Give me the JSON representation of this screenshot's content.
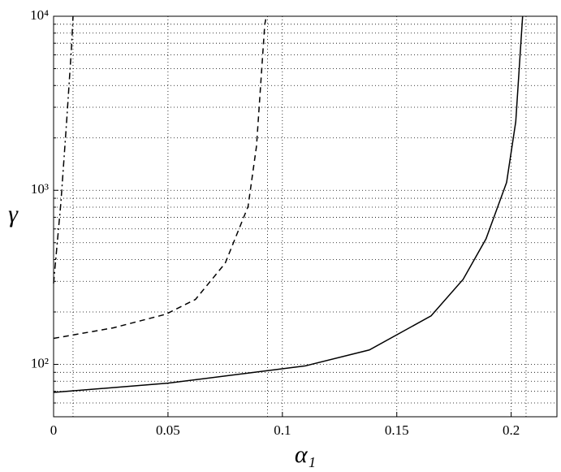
{
  "chart_data": {
    "type": "line",
    "x_label": "α₁",
    "y_label": "γ",
    "xlim": [
      0,
      0.22
    ],
    "xticks": [
      0,
      0.05,
      0.1,
      0.15,
      0.2
    ],
    "ylim": [
      50,
      10000
    ],
    "log_y": true,
    "grid": true,
    "yticks": [
      {
        "value": 100,
        "label": "10²"
      },
      {
        "value": 1000,
        "label": "10³"
      },
      {
        "value": 10000,
        "label": "10⁴"
      }
    ],
    "yminor": [
      60,
      70,
      80,
      90,
      200,
      300,
      400,
      500,
      600,
      700,
      800,
      900,
      2000,
      3000,
      4000,
      5000,
      6000,
      7000,
      8000,
      9000
    ],
    "asymptotes": [
      0.0085,
      0.0935,
      0.2065
    ],
    "series": [
      {
        "color": "#000000",
        "style": "solid",
        "x": [
          0,
          0.05,
          0.11,
          0.138,
          0.165,
          0.179,
          0.189,
          0.198,
          0.202,
          0.205
        ],
        "values": [
          69,
          78,
          98,
          121,
          190,
          308,
          526,
          1110,
          2480,
          10000
        ]
      },
      {
        "color": "#000000",
        "style": "dashed",
        "x": [
          0,
          0.026,
          0.049,
          0.062,
          0.075,
          0.085,
          0.0887,
          0.0923,
          0.093
        ],
        "values": [
          141,
          162,
          194,
          236,
          381,
          807,
          1800,
          8980,
          10000
        ]
      },
      {
        "color": "#000000",
        "style": "dashdot",
        "x": [
          0,
          0.0032,
          0.0057,
          0.0078,
          0.0085
        ],
        "values": [
          292,
          851,
          2480,
          6520,
          10000
        ]
      }
    ]
  }
}
